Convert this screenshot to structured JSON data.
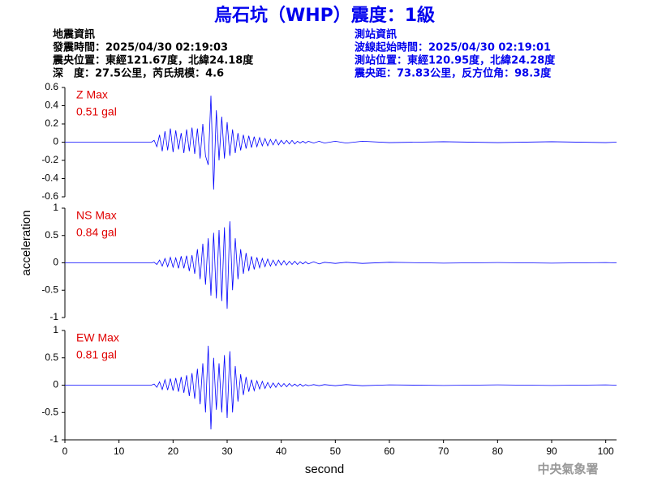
{
  "title": "烏石坑（WHP）震度：1級",
  "event_info": [
    "地震資訊",
    "發震時間：2025/04/30 02:19:03",
    "震央位置：東經121.67度，北緯24.18度",
    "深　度：27.5公里，芮氏規模：4.6"
  ],
  "station_info": [
    "測站資訊",
    "波線起始時間：2025/04/30 02:19:01",
    "測站位置：東經120.95度，北緯24.28度",
    "震央距：73.83公里，反方位角：98.3度"
  ],
  "y_label": "acceleration",
  "x_label": "second",
  "footer": "中央氣象署",
  "chart_data": [
    {
      "type": "line",
      "annotation": [
        "Z Max",
        "0.51 gal"
      ],
      "color": "#0000ff",
      "xlim": [
        0,
        102
      ],
      "ylim": [
        -0.6,
        0.6
      ],
      "yticks": [
        -0.6,
        -0.4,
        -0.2,
        0,
        0.2,
        0.4,
        0.6
      ],
      "x": [
        0,
        16,
        16.5,
        17,
        17.5,
        18,
        18.5,
        19,
        19.5,
        20,
        20.5,
        21,
        21.5,
        22,
        22.5,
        23,
        23.5,
        24,
        24.5,
        25,
        25.5,
        26,
        26.5,
        27,
        27.5,
        28,
        28.5,
        29,
        29.5,
        30,
        30.5,
        31,
        31.5,
        32,
        32.5,
        33,
        33.5,
        34,
        34.5,
        35,
        35.5,
        36,
        36.5,
        37,
        37.5,
        38,
        38.5,
        39,
        39.5,
        40,
        40.5,
        41,
        41.5,
        42,
        42.5,
        43,
        43.5,
        44,
        44.5,
        45,
        46,
        47,
        48,
        50,
        52,
        55,
        60,
        70,
        80,
        90,
        100,
        102
      ],
      "values": [
        0,
        0,
        0.02,
        -0.05,
        0.08,
        -0.1,
        0.12,
        -0.09,
        0.15,
        -0.11,
        0.13,
        -0.08,
        0.1,
        -0.12,
        0.14,
        -0.1,
        0.16,
        -0.13,
        0.15,
        -0.18,
        0.2,
        -0.15,
        -0.25,
        0.51,
        -0.52,
        0.35,
        -0.2,
        0.28,
        -0.18,
        0.22,
        -0.15,
        0.14,
        -0.12,
        0.1,
        -0.09,
        0.08,
        -0.07,
        0.07,
        -0.06,
        0.06,
        -0.05,
        0.05,
        -0.04,
        0.04,
        -0.04,
        0.03,
        -0.03,
        0.03,
        -0.03,
        0.02,
        -0.02,
        0.02,
        -0.02,
        0.02,
        -0.02,
        0.01,
        -0.01,
        0.01,
        -0.01,
        0.01,
        -0.01,
        0.01,
        -0.01,
        0.01,
        -0.01,
        0.01,
        -0.005,
        0.005,
        -0.005,
        0.005,
        -0.005,
        0
      ]
    },
    {
      "type": "line",
      "annotation": [
        "NS Max",
        "0.84 gal"
      ],
      "color": "#0000ff",
      "xlim": [
        0,
        102
      ],
      "ylim": [
        -1,
        1
      ],
      "yticks": [
        -1,
        -0.5,
        0,
        0.5,
        1
      ],
      "x": [
        0,
        16,
        16.5,
        17,
        17.5,
        18,
        18.5,
        19,
        19.5,
        20,
        20.5,
        21,
        21.5,
        22,
        22.5,
        23,
        23.5,
        24,
        24.5,
        25,
        25.5,
        26,
        26.5,
        27,
        27.5,
        28,
        28.5,
        29,
        29.5,
        30,
        30.5,
        31,
        31.5,
        32,
        32.5,
        33,
        33.5,
        34,
        34.5,
        35,
        35.5,
        36,
        36.5,
        37,
        37.5,
        38,
        38.5,
        39,
        39.5,
        40,
        40.5,
        41,
        41.5,
        42,
        42.5,
        43,
        43.5,
        44,
        44.5,
        45,
        46,
        47,
        48,
        50,
        52,
        55,
        60,
        70,
        80,
        90,
        100,
        102
      ],
      "values": [
        0,
        0,
        0.01,
        -0.03,
        0.05,
        -0.06,
        0.08,
        -0.07,
        0.1,
        -0.08,
        0.09,
        -0.1,
        0.12,
        -0.1,
        0.13,
        -0.15,
        0.14,
        -0.2,
        0.25,
        -0.3,
        0.35,
        -0.4,
        0.45,
        -0.6,
        0.55,
        -0.65,
        0.6,
        -0.7,
        0.65,
        -0.84,
        0.76,
        -0.5,
        0.45,
        -0.3,
        0.25,
        -0.2,
        0.18,
        -0.15,
        0.12,
        -0.12,
        0.1,
        -0.09,
        0.08,
        -0.07,
        0.07,
        -0.06,
        0.05,
        -0.05,
        0.05,
        -0.04,
        0.04,
        -0.04,
        0.03,
        -0.03,
        0.03,
        -0.03,
        0.02,
        -0.02,
        0.02,
        -0.02,
        0.02,
        -0.02,
        0.01,
        -0.01,
        0.01,
        -0.01,
        0.01,
        -0.005,
        0.005,
        -0.005,
        0.005,
        0
      ]
    },
    {
      "type": "line",
      "annotation": [
        "EW Max",
        "0.81 gal"
      ],
      "color": "#0000ff",
      "xlim": [
        0,
        102
      ],
      "ylim": [
        -1,
        1
      ],
      "yticks": [
        -1,
        -0.5,
        0,
        0.5,
        1
      ],
      "xticks": [
        0,
        10,
        20,
        30,
        40,
        50,
        60,
        70,
        80,
        90,
        100
      ],
      "x": [
        0,
        16,
        16.5,
        17,
        17.5,
        18,
        18.5,
        19,
        19.5,
        20,
        20.5,
        21,
        21.5,
        22,
        22.5,
        23,
        23.5,
        24,
        24.5,
        25,
        25.5,
        26,
        26.5,
        27,
        27.5,
        28,
        28.5,
        29,
        29.5,
        30,
        30.5,
        31,
        31.5,
        32,
        32.5,
        33,
        33.5,
        34,
        34.5,
        35,
        35.5,
        36,
        36.5,
        37,
        37.5,
        38,
        38.5,
        39,
        39.5,
        40,
        40.5,
        41,
        41.5,
        42,
        42.5,
        43,
        43.5,
        44,
        44.5,
        45,
        46,
        47,
        48,
        50,
        52,
        55,
        60,
        70,
        80,
        90,
        100,
        102
      ],
      "values": [
        0,
        0,
        0.02,
        -0.04,
        0.06,
        -0.08,
        0.1,
        -0.09,
        0.12,
        -0.1,
        0.13,
        -0.12,
        0.15,
        -0.14,
        0.18,
        -0.2,
        0.22,
        -0.25,
        0.3,
        -0.35,
        0.4,
        -0.5,
        0.72,
        -0.81,
        0.5,
        -0.45,
        0.4,
        -0.5,
        0.55,
        -0.6,
        0.62,
        -0.5,
        0.35,
        -0.3,
        0.2,
        -0.18,
        0.15,
        -0.12,
        0.1,
        -0.1,
        0.08,
        -0.07,
        0.07,
        -0.06,
        0.05,
        -0.05,
        0.04,
        -0.04,
        0.04,
        -0.03,
        0.03,
        -0.03,
        0.03,
        -0.02,
        0.02,
        -0.02,
        0.02,
        -0.02,
        0.01,
        -0.01,
        0.01,
        -0.01,
        0.01,
        -0.01,
        0.01,
        -0.01,
        0.005,
        -0.005,
        0.005,
        -0.005,
        0.005,
        0
      ]
    }
  ]
}
